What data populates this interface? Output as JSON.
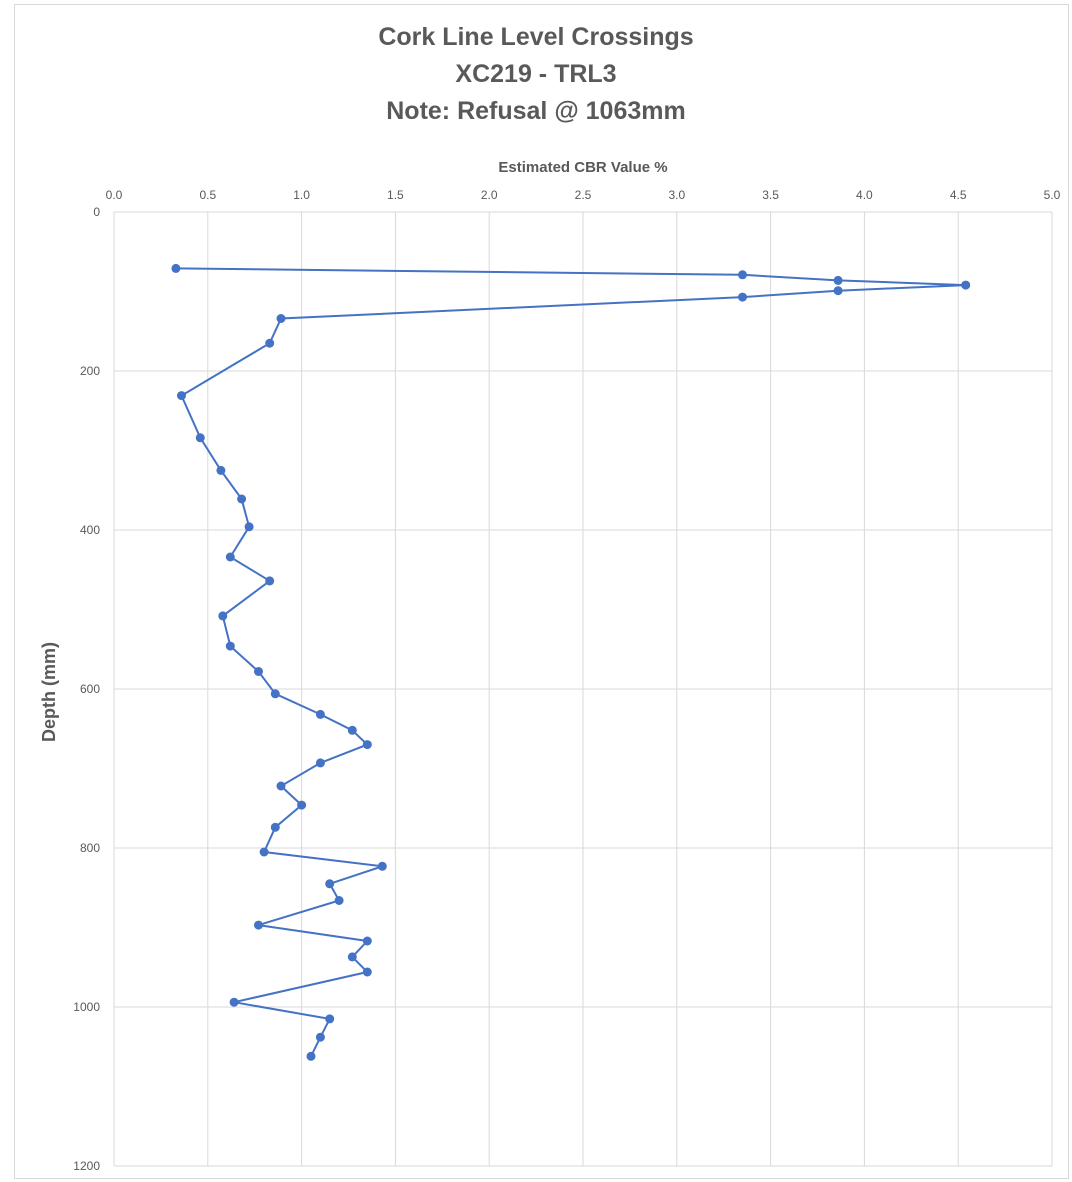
{
  "chart_data": {
    "type": "line",
    "title_lines": [
      "Cork Line Level Crossings",
      "XC219 - TRL3",
      "Note: Refusal @ 1063mm"
    ],
    "xlabel": "Estimated CBR Value %",
    "ylabel": "Depth (mm)",
    "x_axis_position": "top",
    "y_axis_inverted": true,
    "xlim": [
      0,
      5
    ],
    "ylim": [
      0,
      1200
    ],
    "x_ticks": [
      "0.0",
      "0.5",
      "1.0",
      "1.5",
      "2.0",
      "2.5",
      "3.0",
      "3.5",
      "4.0",
      "4.5",
      "5.0"
    ],
    "y_ticks": [
      "0",
      "200",
      "400",
      "600",
      "800",
      "1000",
      "1200"
    ],
    "grid": true,
    "series_color": "#4472C4",
    "points": [
      {
        "x": 0.33,
        "y": 71
      },
      {
        "x": 3.35,
        "y": 79
      },
      {
        "x": 3.86,
        "y": 86
      },
      {
        "x": 4.54,
        "y": 92
      },
      {
        "x": 3.86,
        "y": 99
      },
      {
        "x": 3.35,
        "y": 107
      },
      {
        "x": 0.89,
        "y": 134
      },
      {
        "x": 0.83,
        "y": 165
      },
      {
        "x": 0.36,
        "y": 231
      },
      {
        "x": 0.46,
        "y": 284
      },
      {
        "x": 0.57,
        "y": 325
      },
      {
        "x": 0.68,
        "y": 361
      },
      {
        "x": 0.72,
        "y": 396
      },
      {
        "x": 0.62,
        "y": 434
      },
      {
        "x": 0.83,
        "y": 464
      },
      {
        "x": 0.58,
        "y": 508
      },
      {
        "x": 0.62,
        "y": 546
      },
      {
        "x": 0.77,
        "y": 578
      },
      {
        "x": 0.86,
        "y": 606
      },
      {
        "x": 1.1,
        "y": 632
      },
      {
        "x": 1.27,
        "y": 652
      },
      {
        "x": 1.35,
        "y": 670
      },
      {
        "x": 1.1,
        "y": 693
      },
      {
        "x": 0.89,
        "y": 722
      },
      {
        "x": 1.0,
        "y": 746
      },
      {
        "x": 0.86,
        "y": 774
      },
      {
        "x": 0.8,
        "y": 805
      },
      {
        "x": 1.43,
        "y": 823
      },
      {
        "x": 1.15,
        "y": 845
      },
      {
        "x": 1.2,
        "y": 866
      },
      {
        "x": 0.77,
        "y": 897
      },
      {
        "x": 1.35,
        "y": 917
      },
      {
        "x": 1.27,
        "y": 937
      },
      {
        "x": 1.35,
        "y": 956
      },
      {
        "x": 0.64,
        "y": 994
      },
      {
        "x": 1.15,
        "y": 1015
      },
      {
        "x": 1.1,
        "y": 1038
      },
      {
        "x": 1.05,
        "y": 1062
      }
    ]
  }
}
